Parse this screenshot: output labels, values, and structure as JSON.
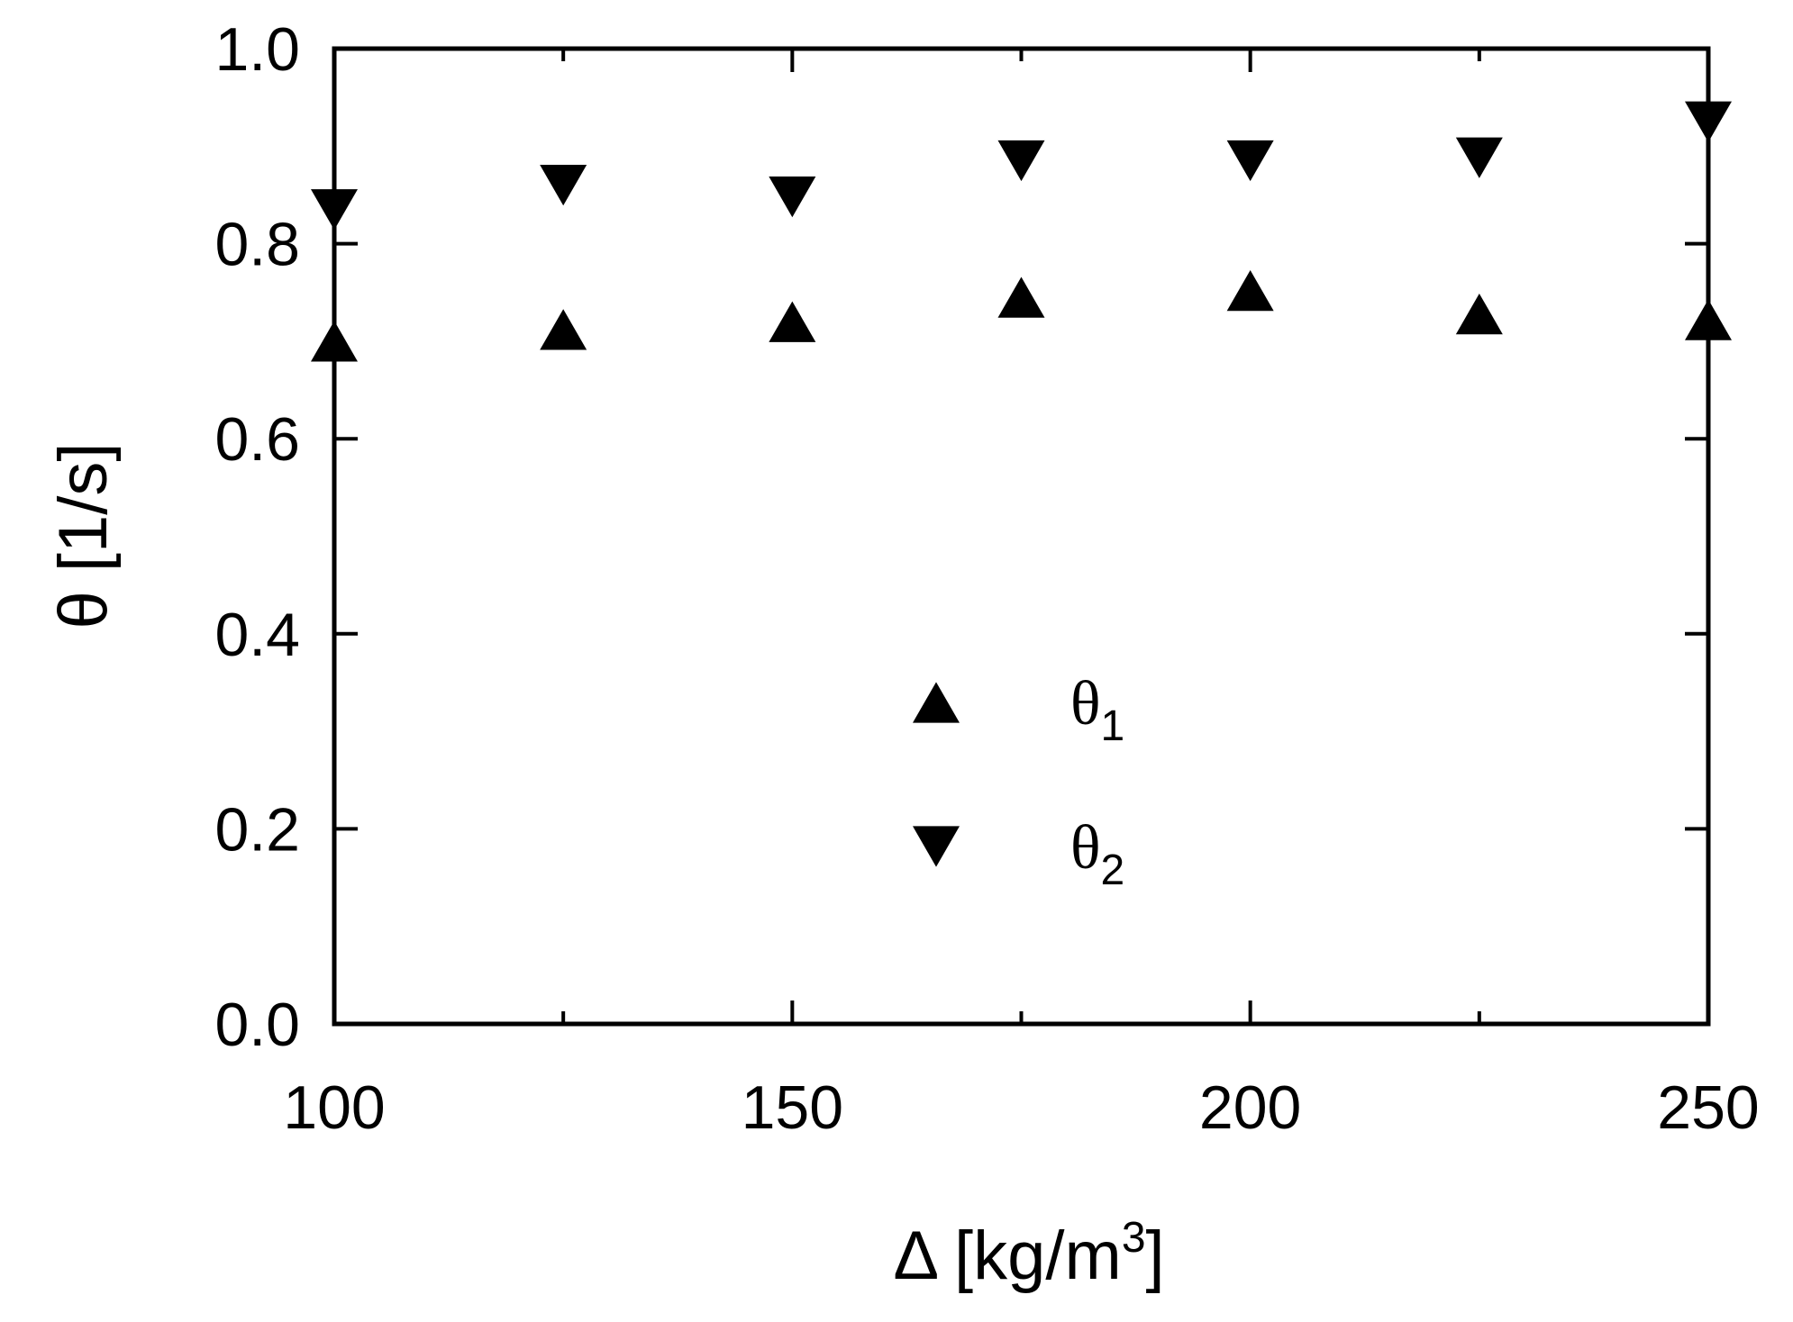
{
  "chart_data": {
    "type": "scatter",
    "xlabel": "Δ [kg/m",
    "xlabel_sup": "3",
    "xlabel_end": "]",
    "ylabel": "θ [1/s]",
    "xlim": [
      100,
      250
    ],
    "ylim": [
      0.0,
      1.0
    ],
    "x_ticks": [
      100,
      150,
      200,
      250
    ],
    "x_tick_labels": [
      "100",
      "150",
      "200",
      "250"
    ],
    "y_ticks": [
      0.0,
      0.2,
      0.4,
      0.6,
      0.8,
      1.0
    ],
    "y_tick_labels": [
      "0.0",
      "0.2",
      "0.4",
      "0.6",
      "0.8",
      "1.0"
    ],
    "x_minor_ticks": [
      125,
      175,
      225
    ],
    "grid": false,
    "legend_position": "center",
    "series": [
      {
        "name": "θ",
        "name_sub": "1",
        "marker": "triangle-up",
        "color": "#000000",
        "x": [
          100,
          125,
          150,
          175,
          200,
          225,
          250
        ],
        "y": [
          0.7,
          0.712,
          0.72,
          0.745,
          0.752,
          0.728,
          0.722
        ]
      },
      {
        "name": "θ",
        "name_sub": "2",
        "marker": "triangle-down",
        "color": "#000000",
        "x": [
          100,
          125,
          150,
          175,
          200,
          225,
          250
        ],
        "y": [
          0.835,
          0.86,
          0.848,
          0.885,
          0.885,
          0.888,
          0.925
        ]
      }
    ]
  }
}
